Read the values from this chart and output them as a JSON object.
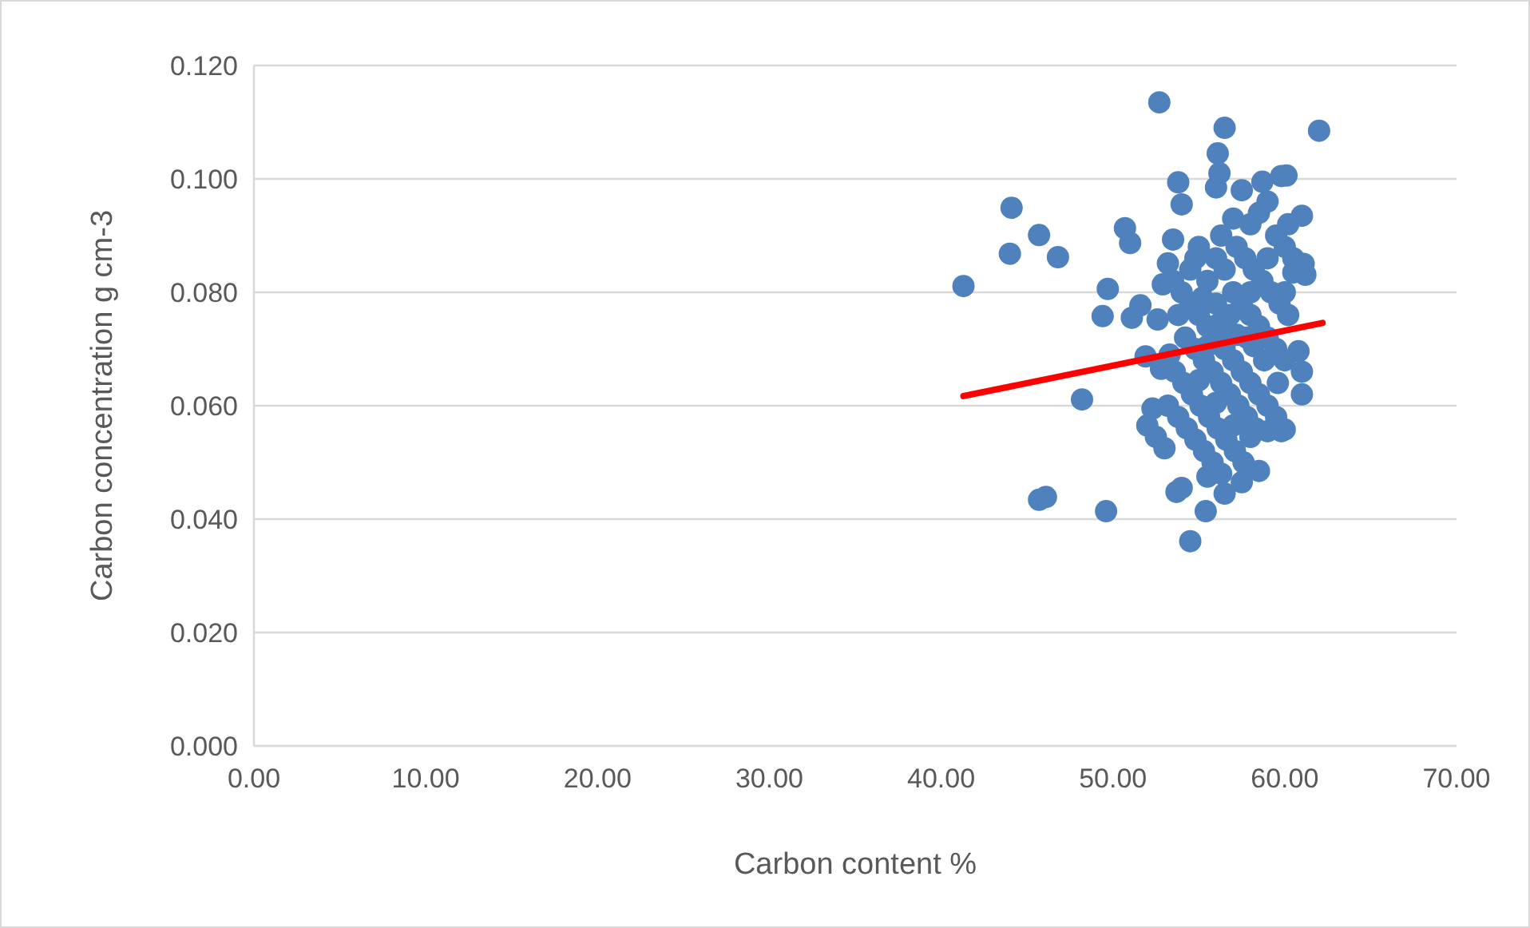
{
  "chart_data": {
    "type": "scatter",
    "xlabel": "Carbon content %",
    "ylabel": "Carbon concentration g cm-3",
    "xlim": [
      0,
      70
    ],
    "ylim": [
      0,
      0.12
    ],
    "xticks": [
      {
        "value": 0,
        "label": "0.00"
      },
      {
        "value": 10,
        "label": "10.00"
      },
      {
        "value": 20,
        "label": "20.00"
      },
      {
        "value": 30,
        "label": "30.00"
      },
      {
        "value": 40,
        "label": "40.00"
      },
      {
        "value": 50,
        "label": "50.00"
      },
      {
        "value": 60,
        "label": "60.00"
      },
      {
        "value": 70,
        "label": "70.00"
      }
    ],
    "yticks": [
      {
        "value": 0,
        "label": "0.000"
      },
      {
        "value": 0.02,
        "label": "0.020"
      },
      {
        "value": 0.04,
        "label": "0.040"
      },
      {
        "value": 0.06,
        "label": "0.060"
      },
      {
        "value": 0.08,
        "label": "0.080"
      },
      {
        "value": 0.1,
        "label": "0.100"
      },
      {
        "value": 0.12,
        "label": "0.120"
      }
    ],
    "grid": "y",
    "series": [
      {
        "marker": "circle",
        "color": "#4f81bd",
        "x": [
          41.3,
          44.1,
          44.0,
          45.7,
          46.8,
          45.7,
          46.1,
          48.2,
          49.6,
          49.7,
          49.4,
          50.7,
          51.0,
          51.1,
          51.6,
          52.7,
          56.5,
          56.1,
          53.8,
          62.0,
          60.1,
          54.5,
          55.4,
          53.7,
          58.5,
          60.0,
          61.0,
          61.0,
          60.8,
          61.1,
          61.2,
          61.0,
          51.9,
          52.6,
          52.9,
          53.2,
          53.5,
          54.0,
          54.0,
          54.5,
          55.0,
          55.5,
          56.0,
          56.5,
          57.0,
          57.5,
          58.0,
          58.5,
          59.0,
          59.5,
          54.2,
          54.8,
          55.3,
          55.8,
          56.3,
          56.8,
          57.3,
          57.8,
          58.3,
          53.6,
          54.1,
          54.6,
          55.1,
          55.6,
          56.1,
          56.6,
          57.1,
          57.6,
          53.2,
          53.8,
          54.3,
          54.8,
          55.3,
          55.8,
          56.3,
          52.0,
          52.5,
          53.0,
          52.8,
          53.3,
          52.3,
          57.0,
          57.5,
          58.0,
          58.5,
          59.0,
          59.5,
          60.0,
          57.2,
          57.7,
          58.2,
          58.7,
          59.2,
          59.7,
          60.2,
          56.0,
          56.5,
          55.5,
          56.0,
          56.8,
          57.8,
          58.8,
          59.6,
          58.0,
          58.5,
          59.0,
          59.5,
          60.0,
          60.5,
          60.2,
          57.5,
          58.7,
          59.8,
          56.0,
          56.2,
          55.0,
          54.8,
          56.3,
          57.0,
          55.5,
          56.2,
          57.2,
          58.2,
          55.0,
          56.0,
          57.0,
          58.0,
          59.0,
          59.8,
          56.5,
          57.5,
          55.5,
          54.0,
          60.5,
          60.0,
          59.0,
          58.0,
          53.8,
          53.5,
          54.5,
          55.2
        ],
        "values": [
          0.0811,
          0.0949,
          0.0868,
          0.0901,
          0.0862,
          0.0434,
          0.0439,
          0.0611,
          0.0414,
          0.0806,
          0.0758,
          0.0913,
          0.0887,
          0.0755,
          0.0777,
          0.1135,
          0.109,
          0.1045,
          0.0994,
          0.1085,
          0.1006,
          0.0361,
          0.0414,
          0.0448,
          0.0485,
          0.0558,
          0.062,
          0.066,
          0.0696,
          0.085,
          0.0831,
          0.0935,
          0.0687,
          0.0752,
          0.0814,
          0.0851,
          0.0893,
          0.0955,
          0.08,
          0.078,
          0.076,
          0.074,
          0.072,
          0.07,
          0.068,
          0.066,
          0.064,
          0.062,
          0.06,
          0.058,
          0.072,
          0.07,
          0.068,
          0.066,
          0.064,
          0.062,
          0.06,
          0.058,
          0.056,
          0.066,
          0.064,
          0.062,
          0.06,
          0.058,
          0.056,
          0.054,
          0.052,
          0.05,
          0.06,
          0.058,
          0.056,
          0.054,
          0.052,
          0.05,
          0.048,
          0.0565,
          0.0545,
          0.0525,
          0.0665,
          0.069,
          0.0595,
          0.08,
          0.078,
          0.076,
          0.074,
          0.072,
          0.07,
          0.068,
          0.088,
          0.086,
          0.084,
          0.082,
          0.08,
          0.078,
          0.076,
          0.086,
          0.084,
          0.082,
          0.078,
          0.076,
          0.072,
          0.068,
          0.064,
          0.092,
          0.094,
          0.096,
          0.09,
          0.088,
          0.086,
          0.092,
          0.098,
          0.0995,
          0.1005,
          0.0985,
          0.101,
          0.088,
          0.086,
          0.09,
          0.093,
          0.0705,
          0.0745,
          0.0725,
          0.0705,
          0.0645,
          0.0605,
          0.0565,
          0.0545,
          0.0555,
          0.0555,
          0.0445,
          0.0465,
          0.0475,
          0.0455,
          0.0835,
          0.08,
          0.086,
          0.08,
          0.076,
          0.082,
          0.084,
          0.079
        ]
      },
      {
        "type": "line",
        "color": "#ff0000",
        "x": [
          41.3,
          62.2
        ],
        "values": [
          0.0617,
          0.0746
        ]
      }
    ]
  }
}
